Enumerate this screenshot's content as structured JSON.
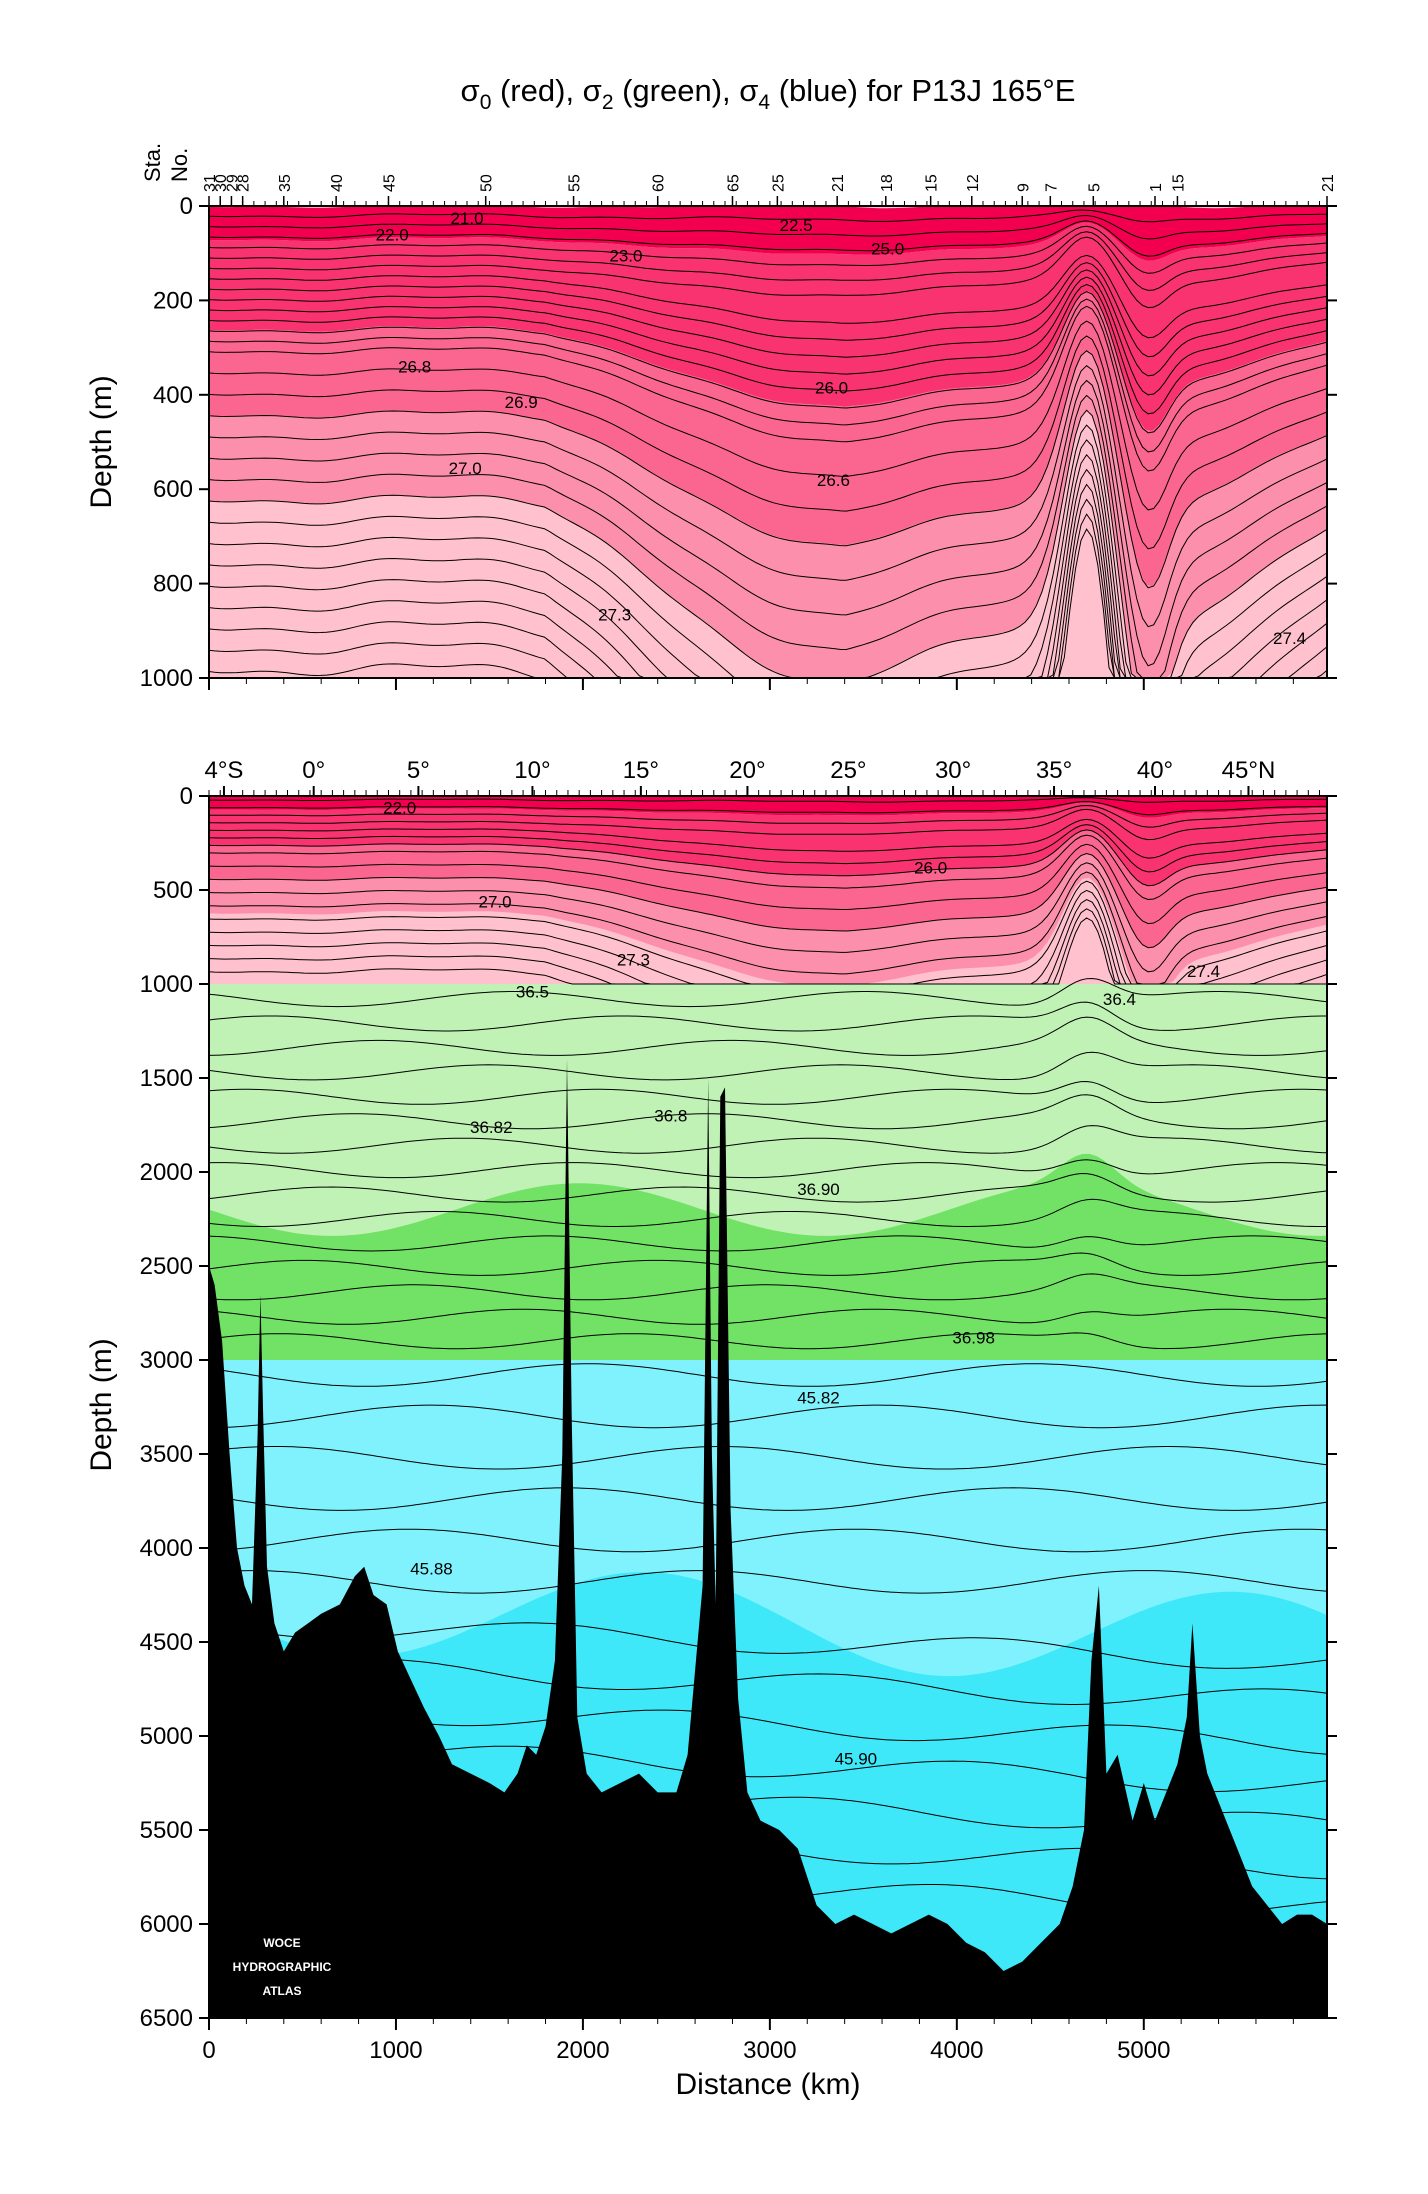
{
  "title": {
    "main": "σ",
    "sub0": "0",
    "t1": " (red), σ",
    "sub1": "2",
    "t2": " (green), σ",
    "sub2": "4",
    "t3": " (blue) for P13J 165°E"
  },
  "top_panel": {
    "ylabel": "Depth (m)",
    "station_label_1": "Sta.",
    "station_label_2": "No.",
    "stations": [
      {
        "label": "31",
        "km": 0
      },
      {
        "label": "30",
        "km": 60
      },
      {
        "label": "29",
        "km": 120
      },
      {
        "label": "28",
        "km": 180
      },
      {
        "label": "35",
        "km": 400
      },
      {
        "label": "40",
        "km": 680
      },
      {
        "label": "45",
        "km": 960
      },
      {
        "label": "50",
        "km": 1480
      },
      {
        "label": "55",
        "km": 1950
      },
      {
        "label": "60",
        "km": 2400
      },
      {
        "label": "65",
        "km": 2800
      },
      {
        "label": "25",
        "km": 3040
      },
      {
        "label": "21",
        "km": 3360
      },
      {
        "label": "18",
        "km": 3620
      },
      {
        "label": "15",
        "km": 3860
      },
      {
        "label": "12",
        "km": 4080
      },
      {
        "label": "9",
        "km": 4350
      },
      {
        "label": "7",
        "km": 4500
      },
      {
        "label": "5",
        "km": 4730
      },
      {
        "label": "1",
        "km": 5060
      },
      {
        "label": "15",
        "km": 5180
      },
      {
        "label": "21",
        "km": 5980
      }
    ],
    "yticks": [
      "0",
      "200",
      "400",
      "600",
      "800",
      "1000"
    ]
  },
  "bottom_panel": {
    "ylabel": "Depth (m)",
    "xlabel": "Distance (km)",
    "lat_labels": [
      {
        "label": "4°S",
        "km": 80
      },
      {
        "label": "0°",
        "km": 560
      },
      {
        "label": "5°",
        "km": 1120
      },
      {
        "label": "10°",
        "km": 1730
      },
      {
        "label": "15°",
        "km": 2310
      },
      {
        "label": "20°",
        "km": 2880
      },
      {
        "label": "25°",
        "km": 3420
      },
      {
        "label": "30°",
        "km": 3980
      },
      {
        "label": "35°",
        "km": 4520
      },
      {
        "label": "40°",
        "km": 5060
      },
      {
        "label": "45°N",
        "km": 5560
      }
    ],
    "yticks": [
      "0",
      "500",
      "1000",
      "1500",
      "2000",
      "2500",
      "3000",
      "3500",
      "4000",
      "4500",
      "5000",
      "5500",
      "6000",
      "6500"
    ],
    "xticks": [
      "0",
      "1000",
      "2000",
      "3000",
      "4000",
      "5000"
    ]
  },
  "logo": {
    "line1": "WOCE",
    "line2": "HYDROGRAPHIC",
    "line3": "ATLAS"
  },
  "colors": {
    "red_dark": "#f2004f",
    "red_1": "#f8336f",
    "red_2": "#fa6690",
    "red_3": "#fc8fab",
    "red_light": "#ffc1cd",
    "green_light": "#bff2b4",
    "green_dark": "#72e266",
    "blue_light": "#7ff2fd",
    "blue_dark": "#3fe8f9",
    "bathymetry": "#000000"
  },
  "chart_data": [
    {
      "type": "contour",
      "title": "σ0 (red), σ2 (green), σ4 (blue) for P13J 165°E",
      "ylabel": "Depth (m)",
      "xlim": [
        0,
        5980
      ],
      "ylim": [
        1000,
        0
      ],
      "contour_labels": [
        {
          "text": "21.0",
          "km": 1380,
          "depth": 25
        },
        {
          "text": "22.0",
          "km": 980,
          "depth": 60
        },
        {
          "text": "22.5",
          "km": 3140,
          "depth": 40
        },
        {
          "text": "23.0",
          "km": 2230,
          "depth": 105
        },
        {
          "text": "25.0",
          "km": 3630,
          "depth": 90
        },
        {
          "text": "26.8",
          "km": 1100,
          "depth": 340
        },
        {
          "text": "26.9",
          "km": 1670,
          "depth": 415
        },
        {
          "text": "26.0",
          "km": 3330,
          "depth": 385
        },
        {
          "text": "27.0",
          "km": 1370,
          "depth": 555
        },
        {
          "text": "26.6",
          "km": 3340,
          "depth": 580
        },
        {
          "text": "27.3",
          "km": 2170,
          "depth": 865
        },
        {
          "text": "27.4",
          "km": 5780,
          "depth": 915
        }
      ]
    },
    {
      "type": "contour",
      "ylabel": "Depth (m)",
      "xlabel": "Distance (km)",
      "xlim": [
        0,
        5980
      ],
      "ylim": [
        6500,
        0
      ],
      "bands": [
        {
          "variable": "σ0",
          "depth_range": [
            0,
            1000
          ]
        },
        {
          "variable": "σ2",
          "depth_range": [
            1000,
            3000
          ]
        },
        {
          "variable": "σ4",
          "depth_range": [
            3000,
            6500
          ]
        }
      ],
      "contour_labels": [
        {
          "text": "22.0",
          "km": 1020,
          "depth": 60
        },
        {
          "text": "26.0",
          "km": 3860,
          "depth": 380
        },
        {
          "text": "27.0",
          "km": 1530,
          "depth": 560
        },
        {
          "text": "27.3",
          "km": 2270,
          "depth": 870
        },
        {
          "text": "27.4",
          "km": 5320,
          "depth": 930
        },
        {
          "text": "36.5",
          "km": 1730,
          "depth": 1040
        },
        {
          "text": "36.4",
          "km": 4870,
          "depth": 1080
        },
        {
          "text": "36.82",
          "km": 1510,
          "depth": 1760
        },
        {
          "text": "36.8",
          "km": 2470,
          "depth": 1700
        },
        {
          "text": "36.90",
          "km": 3260,
          "depth": 2090
        },
        {
          "text": "36.98",
          "km": 4090,
          "depth": 2880
        },
        {
          "text": "45.82",
          "km": 3260,
          "depth": 3200
        },
        {
          "text": "45.88",
          "km": 1190,
          "depth": 4110
        },
        {
          "text": "45.90",
          "km": 3460,
          "depth": 5120
        }
      ],
      "bathymetry_depth_m": [
        [
          0,
          2500
        ],
        [
          30,
          2600
        ],
        [
          70,
          2900
        ],
        [
          110,
          3500
        ],
        [
          150,
          4000
        ],
        [
          190,
          4200
        ],
        [
          230,
          4300
        ],
        [
          260,
          3400
        ],
        [
          275,
          2650
        ],
        [
          290,
          3300
        ],
        [
          310,
          4100
        ],
        [
          350,
          4400
        ],
        [
          400,
          4550
        ],
        [
          460,
          4450
        ],
        [
          530,
          4400
        ],
        [
          600,
          4350
        ],
        [
          700,
          4300
        ],
        [
          780,
          4150
        ],
        [
          830,
          4100
        ],
        [
          880,
          4250
        ],
        [
          950,
          4300
        ],
        [
          1010,
          4550
        ],
        [
          1080,
          4700
        ],
        [
          1150,
          4850
        ],
        [
          1230,
          5000
        ],
        [
          1300,
          5150
        ],
        [
          1400,
          5200
        ],
        [
          1500,
          5250
        ],
        [
          1580,
          5300
        ],
        [
          1650,
          5200
        ],
        [
          1700,
          5050
        ],
        [
          1750,
          5100
        ],
        [
          1800,
          4950
        ],
        [
          1850,
          4600
        ],
        [
          1890,
          3500
        ],
        [
          1915,
          1400
        ],
        [
          1940,
          3300
        ],
        [
          1970,
          4900
        ],
        [
          2020,
          5200
        ],
        [
          2100,
          5300
        ],
        [
          2200,
          5250
        ],
        [
          2300,
          5200
        ],
        [
          2400,
          5300
        ],
        [
          2500,
          5300
        ],
        [
          2560,
          5100
        ],
        [
          2640,
          4200
        ],
        [
          2670,
          1500
        ],
        [
          2690,
          3500
        ],
        [
          2710,
          4300
        ],
        [
          2735,
          1600
        ],
        [
          2760,
          1550
        ],
        [
          2790,
          3800
        ],
        [
          2830,
          4800
        ],
        [
          2880,
          5300
        ],
        [
          2950,
          5450
        ],
        [
          3050,
          5500
        ],
        [
          3150,
          5600
        ],
        [
          3250,
          5900
        ],
        [
          3350,
          6000
        ],
        [
          3450,
          5950
        ],
        [
          3550,
          6000
        ],
        [
          3650,
          6050
        ],
        [
          3750,
          6000
        ],
        [
          3850,
          5950
        ],
        [
          3950,
          6000
        ],
        [
          4050,
          6100
        ],
        [
          4150,
          6150
        ],
        [
          4250,
          6250
        ],
        [
          4350,
          6200
        ],
        [
          4450,
          6100
        ],
        [
          4550,
          6000
        ],
        [
          4620,
          5800
        ],
        [
          4680,
          5500
        ],
        [
          4720,
          4600
        ],
        [
          4760,
          4200
        ],
        [
          4800,
          5200
        ],
        [
          4860,
          5100
        ],
        [
          4940,
          5450
        ],
        [
          5000,
          5250
        ],
        [
          5060,
          5450
        ],
        [
          5120,
          5300
        ],
        [
          5180,
          5150
        ],
        [
          5230,
          4900
        ],
        [
          5260,
          4400
        ],
        [
          5300,
          5000
        ],
        [
          5340,
          5200
        ],
        [
          5420,
          5400
        ],
        [
          5500,
          5600
        ],
        [
          5580,
          5800
        ],
        [
          5660,
          5900
        ],
        [
          5740,
          6000
        ],
        [
          5820,
          5950
        ],
        [
          5900,
          5950
        ],
        [
          5980,
          6000
        ]
      ]
    }
  ]
}
